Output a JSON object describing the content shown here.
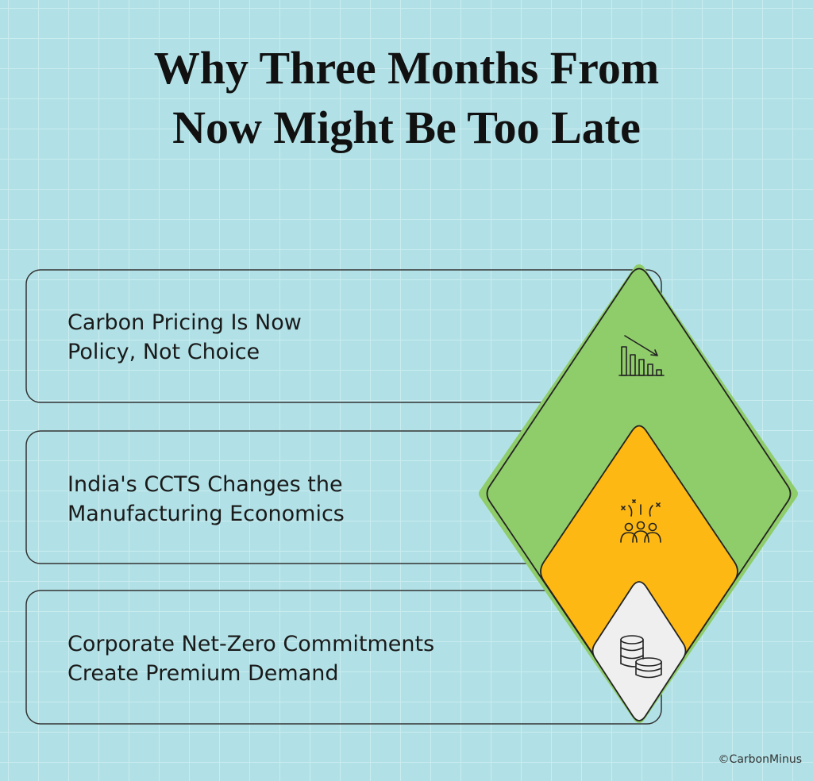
{
  "header": {
    "title_lines": [
      "Why Three Months From",
      "Now Might Be Too Late"
    ]
  },
  "items": [
    {
      "lines": [
        "Carbon Pricing Is Now",
        "Policy, Not Choice"
      ]
    },
    {
      "lines": [
        "India's CCTS Changes the",
        "Manufacturing Economics"
      ]
    },
    {
      "lines": [
        "Corporate Net-Zero Commitments",
        "Create Premium Demand"
      ]
    }
  ],
  "footer": {
    "credit": "©CarbonMinus"
  }
}
